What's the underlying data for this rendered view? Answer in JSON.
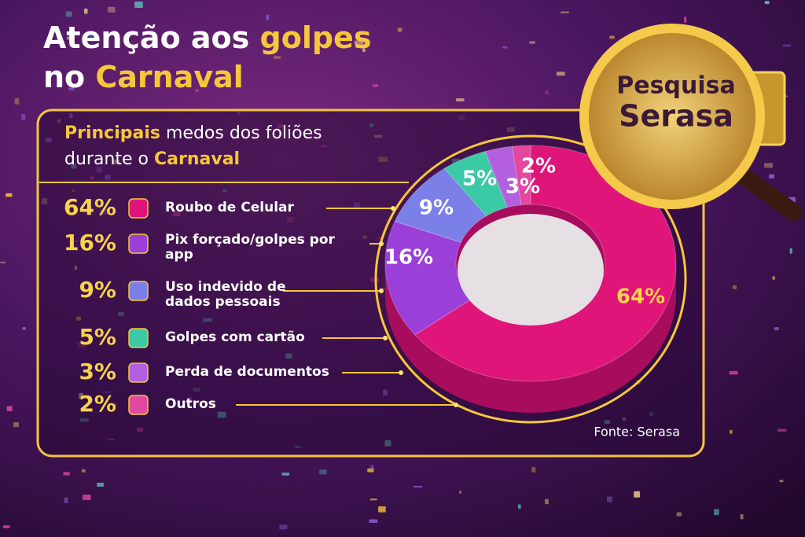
{
  "chart_data": {
    "type": "pie",
    "title": [
      "Atenção aos",
      "golpes",
      "no",
      "Carnaval"
    ],
    "subtitle": [
      "Principais",
      "medos dos foliões",
      "durante o",
      "Carnaval"
    ],
    "badge": [
      "Pesquisa",
      "Serasa"
    ],
    "source": "Fonte: Serasa",
    "categories": [
      "Roubo de Celular",
      "Pix forçado/golpes por app",
      "Uso indevido de dados pessoais",
      "Golpes com cartão",
      "Perda de documentos",
      "Outros"
    ],
    "values": [
      64,
      16,
      9,
      5,
      3,
      2
    ],
    "value_labels": [
      "64%",
      "16%",
      "9%",
      "5%",
      "3%",
      "2%"
    ],
    "colors": [
      "#e0157a",
      "#9b3fd9",
      "#7b7fe8",
      "#3cc9a6",
      "#b45ee0",
      "#e3479f"
    ]
  }
}
